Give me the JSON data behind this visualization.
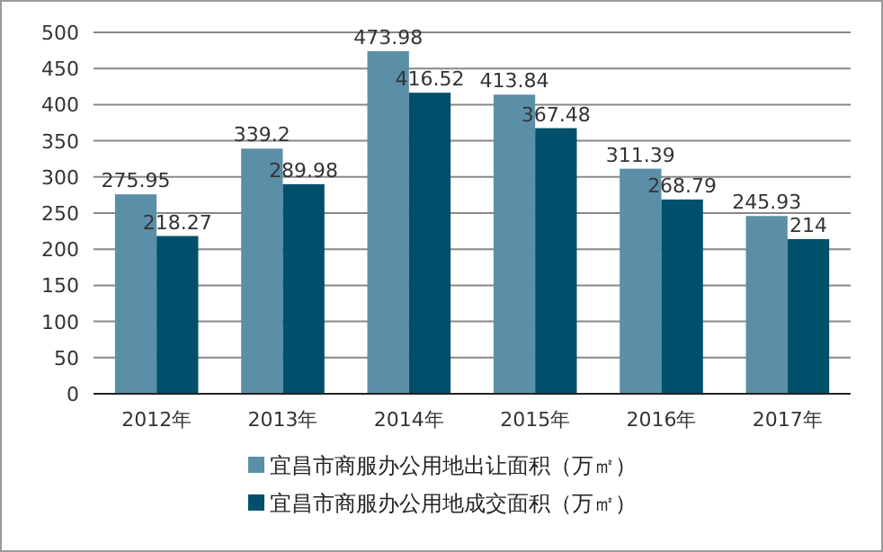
{
  "chart_data": {
    "type": "bar",
    "categories": [
      "2012年",
      "2013年",
      "2014年",
      "2015年",
      "2016年",
      "2017年"
    ],
    "series": [
      {
        "name": "宜昌市商服办公用地出让面积（万㎡）",
        "color": "#5b8fa8",
        "values": [
          275.95,
          339.2,
          473.98,
          413.84,
          311.39,
          245.93
        ]
      },
      {
        "name": "宜昌市商服办公用地成交面积（万㎡）",
        "color": "#00506b",
        "values": [
          218.27,
          289.98,
          416.52,
          367.48,
          268.79,
          214
        ]
      }
    ],
    "ylim": [
      0,
      500
    ],
    "yticks": [
      0,
      50,
      100,
      150,
      200,
      250,
      300,
      350,
      400,
      450,
      500
    ],
    "grid": "y",
    "legend": "bottom",
    "data_labels": true
  }
}
